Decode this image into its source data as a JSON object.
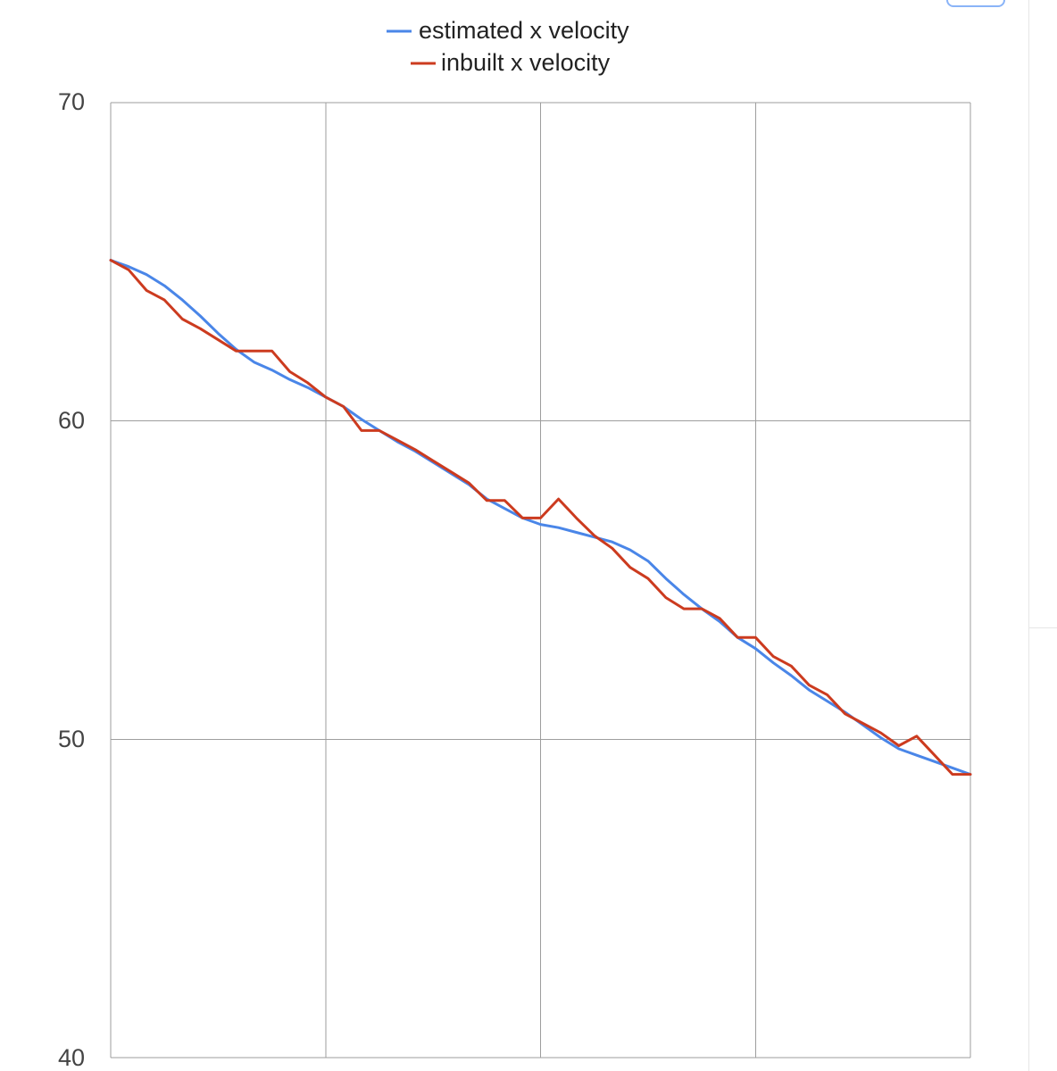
{
  "chart_data": {
    "type": "line",
    "title": "",
    "xlabel": "",
    "ylabel": "",
    "ylim": [
      40,
      70
    ],
    "yticks": [
      "70",
      "60",
      "50",
      "40"
    ],
    "grid": true,
    "legend_position": "top",
    "x": [
      0,
      1,
      2,
      3,
      4,
      5,
      6,
      7,
      8,
      9,
      10,
      11,
      12,
      13,
      14,
      15,
      16,
      17,
      18,
      19,
      20,
      21,
      22,
      23,
      24,
      25,
      26,
      27,
      28,
      29,
      30,
      31,
      32,
      33,
      34,
      35,
      36,
      37,
      38,
      39,
      40,
      41,
      42,
      43,
      44,
      45,
      46,
      47,
      48
    ],
    "series": [
      {
        "name": "estimated x velocity",
        "color": "#4a86e8",
        "values": [
          65.05,
          64.85,
          64.6,
          64.25,
          63.8,
          63.3,
          62.75,
          62.25,
          61.85,
          61.6,
          61.3,
          61.05,
          60.75,
          60.45,
          60.05,
          59.7,
          59.35,
          59.05,
          58.7,
          58.35,
          58.0,
          57.55,
          57.25,
          56.95,
          56.75,
          56.65,
          56.5,
          56.35,
          56.2,
          55.95,
          55.6,
          55.05,
          54.55,
          54.1,
          53.7,
          53.2,
          52.85,
          52.4,
          52.0,
          51.55,
          51.2,
          50.85,
          50.45,
          50.05,
          49.7,
          49.5,
          49.3,
          49.1,
          48.9
        ]
      },
      {
        "name": "inbuilt x velocity",
        "color": "#cc3b1f",
        "values": [
          65.05,
          64.75,
          64.1,
          63.8,
          63.2,
          62.9,
          62.55,
          62.2,
          62.2,
          62.2,
          61.55,
          61.2,
          60.75,
          60.45,
          59.7,
          59.7,
          59.4,
          59.1,
          58.75,
          58.4,
          58.05,
          57.5,
          57.5,
          56.95,
          56.95,
          57.55,
          56.95,
          56.4,
          56.0,
          55.4,
          55.05,
          54.45,
          54.1,
          54.1,
          53.8,
          53.2,
          53.2,
          52.6,
          52.3,
          51.7,
          51.4,
          50.8,
          50.5,
          50.2,
          49.8,
          50.1,
          49.5,
          48.9,
          48.9
        ]
      }
    ]
  }
}
